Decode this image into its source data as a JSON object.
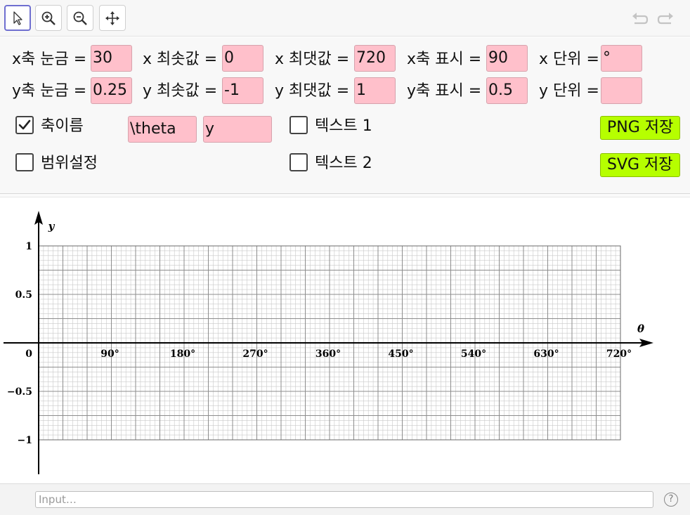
{
  "toolbar": {
    "tools": [
      "move-tool",
      "zoom-in-tool",
      "zoom-out-tool",
      "move-graphics-view-tool"
    ],
    "undo": "undo-icon",
    "redo": "redo-icon"
  },
  "row1": {
    "xtick_label": "x축 눈금 =",
    "xtick_value": "30",
    "xmin_label": "x 최솟값 =",
    "xmin_value": "0",
    "xmax_label": "x 최댓값 =",
    "xmax_value": "720",
    "xshow_label": "x축 표시 =",
    "xshow_value": "90",
    "xunit_label": "x 단위 =",
    "xunit_value": "°"
  },
  "row2": {
    "ytick_label": "y축 눈금 =",
    "ytick_value": "0.25",
    "ymin_label": "y 최솟값 =",
    "ymin_value": "-1",
    "ymax_label": "y 최댓값 =",
    "ymax_value": "1",
    "yshow_label": "y축 표시 =",
    "yshow_value": "0.5",
    "yunit_label": "y 단위 =",
    "yunit_value": ""
  },
  "options": {
    "axis_name_label": "축이름",
    "axis_name_checked": true,
    "axis_x_name": "\\theta",
    "axis_y_name": "y",
    "range_label": "범위설정",
    "range_checked": false,
    "text1_label": "텍스트 1",
    "text1_checked": false,
    "text2_label": "텍스트 2",
    "text2_checked": false,
    "png_button": "PNG 저장",
    "svg_button": "SVG 저장"
  },
  "graph": {
    "x_axis_name": "θ",
    "y_axis_name": "y",
    "x_tick_labels": [
      "90°",
      "180°",
      "270°",
      "360°",
      "450°",
      "540°",
      "630°",
      "720°"
    ],
    "y_tick_labels": [
      "1",
      "0.5",
      "0",
      "−0.5",
      "−1"
    ]
  },
  "input_bar": {
    "placeholder": "Input…",
    "help": "?"
  }
}
